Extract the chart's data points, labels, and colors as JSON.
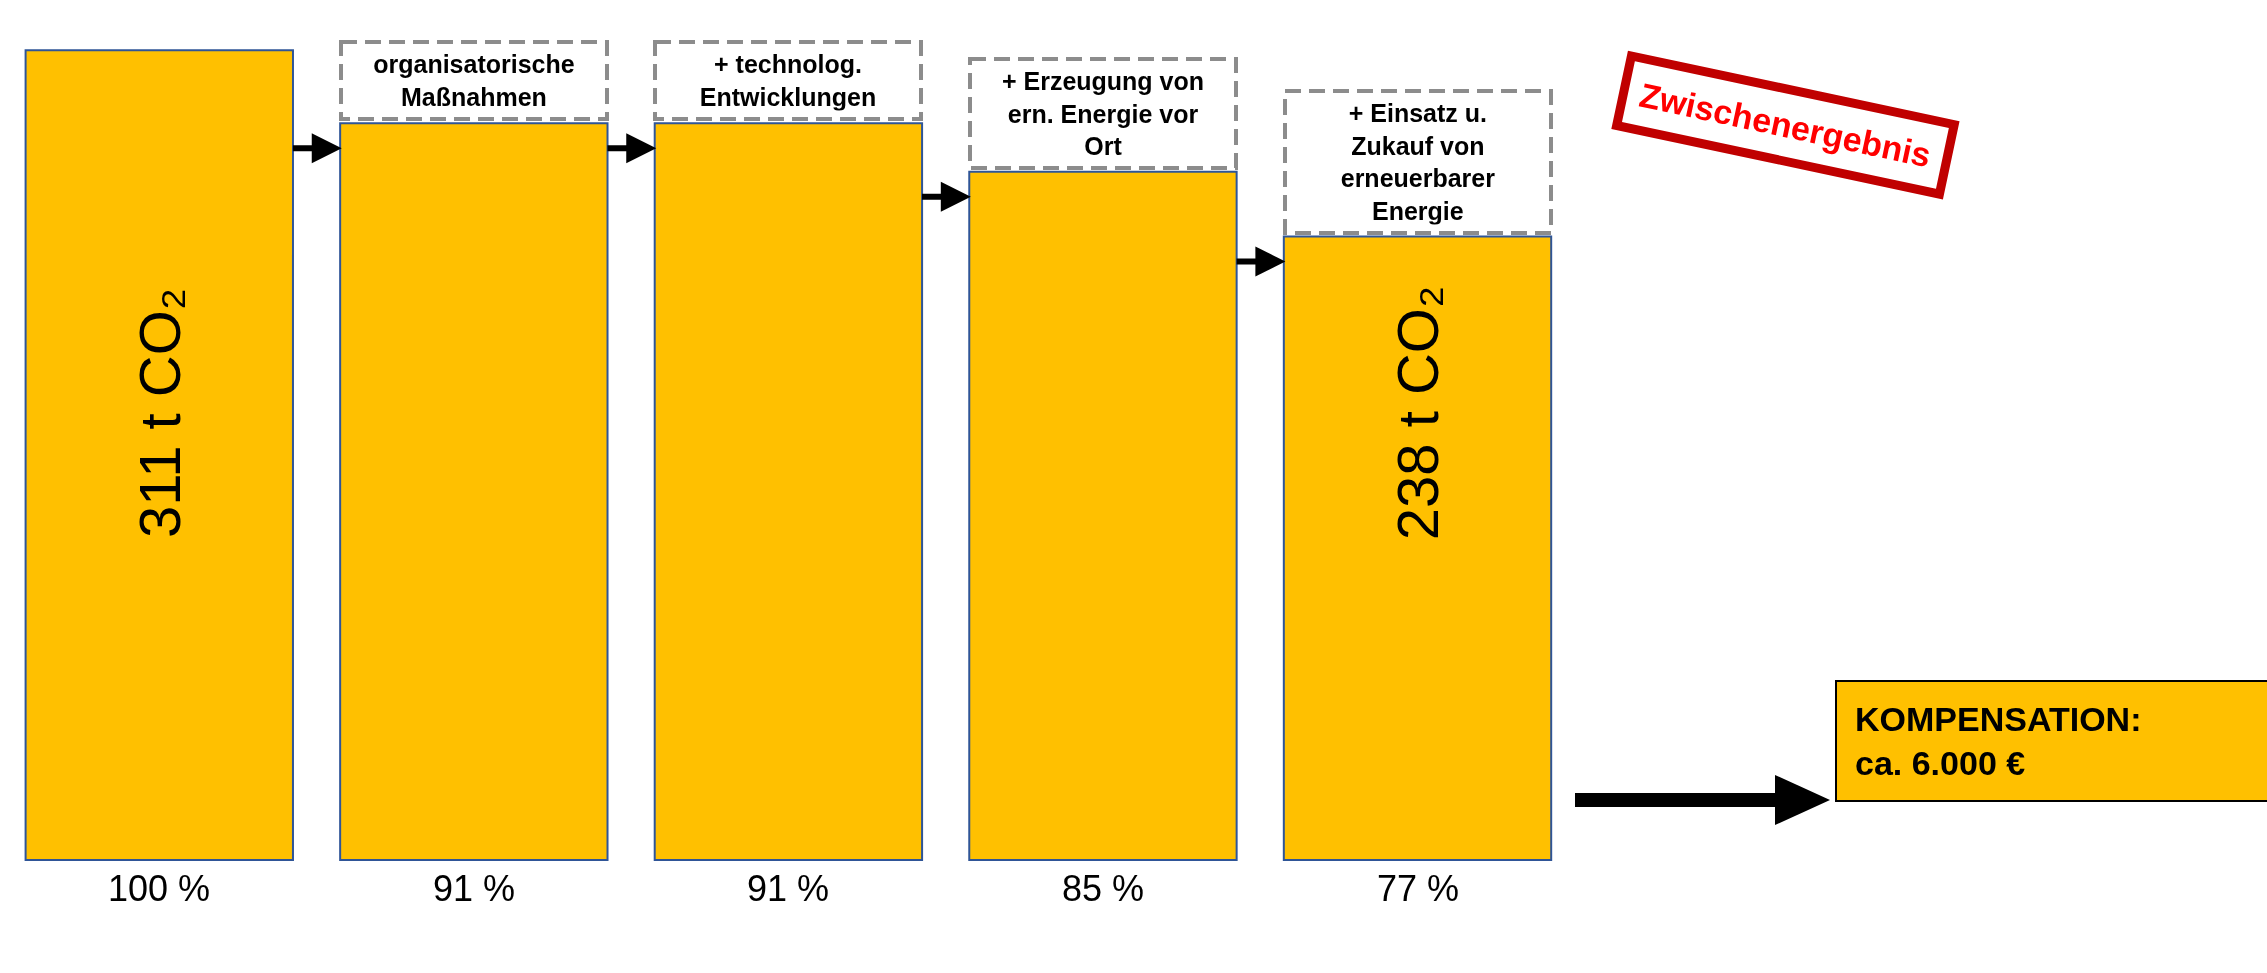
{
  "chart_data": {
    "type": "bar",
    "categories": [
      null,
      "organisatorische\nMaßnahmen",
      "+ technolog.\nEntwicklungen",
      "+ Erzeugung von\nern. Energie vor\nOrt",
      "+ Einsatz u.\nZukauf von\nerneuerbarer\nEnergie"
    ],
    "values": [
      100,
      91,
      91,
      85,
      77
    ],
    "value_labels": [
      "100 %",
      "91 %",
      "91 %",
      "85 %",
      "77 %"
    ],
    "color": "#ffc000",
    "annotations": [
      "311 t CO₂",
      "238 t CO₂",
      "Zwischenergebnis",
      "KOMPENSATION:\nca. 6.000 €"
    ],
    "grid": false,
    "tick_labels": "x"
  }
}
